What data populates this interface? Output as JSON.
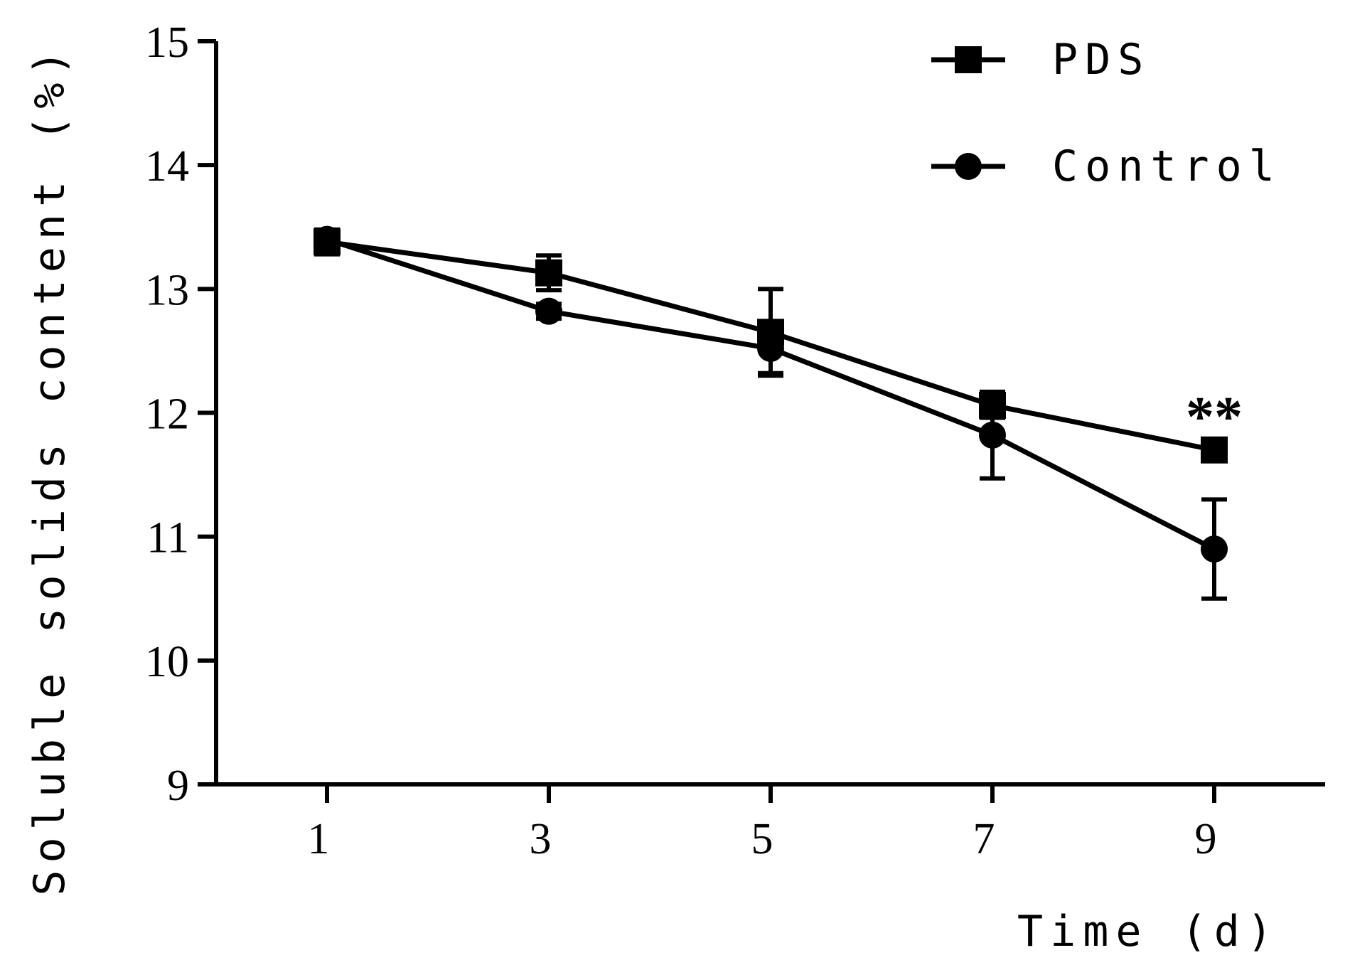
{
  "chart_data": {
    "type": "line",
    "title": "",
    "xlabel": "Time (d)",
    "ylabel": "Soluble solids content (%)",
    "x": [
      1,
      3,
      5,
      7,
      9
    ],
    "x_ticks": [
      "1",
      "3",
      "5",
      "7",
      "9"
    ],
    "xlim": [
      0,
      10
    ],
    "ylim": [
      9,
      15
    ],
    "y_ticks": [
      "9",
      "10",
      "11",
      "12",
      "13",
      "14",
      "15"
    ],
    "legend_position": "top-right",
    "grid": false,
    "series": [
      {
        "name": "PDS",
        "marker": "square",
        "values": [
          13.38,
          13.13,
          12.65,
          12.06,
          11.7
        ],
        "errors": [
          0.1,
          0.14,
          0.35,
          0.1,
          0.08
        ]
      },
      {
        "name": "Control",
        "marker": "circle",
        "values": [
          13.4,
          12.82,
          12.52,
          11.82,
          10.9
        ],
        "errors": [
          0.06,
          0.06,
          0.2,
          0.35,
          0.4
        ]
      }
    ],
    "annotations": [
      {
        "text": "**",
        "x": 9,
        "series": "PDS"
      }
    ],
    "colors": {
      "line": "#000000",
      "background": "#ffffff"
    }
  }
}
